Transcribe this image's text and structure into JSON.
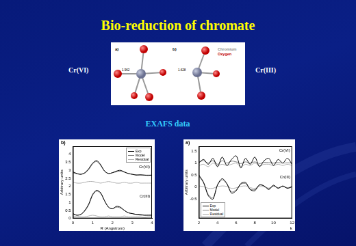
{
  "slide": {
    "title": "Bio-reduction of chromate",
    "left_label": "Cr(VI)",
    "right_label": "Cr(III)",
    "section": "EXAFS data"
  },
  "structure_figure": {
    "panels": [
      {
        "label": "a)",
        "bond_length": 1.962
      },
      {
        "label": "b)",
        "bond_length": 1.628
      }
    ],
    "key_labels": [
      "Chromium",
      "Oxygen"
    ]
  },
  "chart_data": [
    {
      "type": "line",
      "panel_label": "b)",
      "x_label": "R (Angstrom)",
      "y_label": "Arbitrary units",
      "x": [
        0,
        0.2,
        0.4,
        0.6,
        0.8,
        1.0,
        1.2,
        1.4,
        1.6,
        1.8,
        2.0,
        2.2,
        2.4,
        2.6,
        2.8,
        3.0,
        3.2,
        3.4,
        3.6,
        3.8,
        4.0
      ],
      "xlim": [
        0,
        4
      ],
      "xticks": [
        0,
        1,
        2,
        3,
        4
      ],
      "ylim": [
        0,
        4.5
      ],
      "yticks": [
        0,
        0.5,
        1,
        1.5,
        2,
        2.5,
        3,
        3.5,
        4
      ],
      "grid": false,
      "legend": "upper right",
      "annotations": [
        "Cr(VI)",
        "Cr(III)"
      ],
      "series": [
        {
          "name": "Exp",
          "color": "#000000",
          "values": [
            2.9,
            2.8,
            2.75,
            2.85,
            3.1,
            3.45,
            3.6,
            3.35,
            2.95,
            2.8,
            2.85,
            2.95,
            3.0,
            2.9,
            2.8,
            2.75,
            2.7,
            2.72,
            2.7,
            2.68,
            2.7
          ]
        },
        {
          "name": "Model",
          "color": "#808080",
          "values": [
            2.85,
            2.78,
            2.75,
            2.82,
            3.05,
            3.4,
            3.55,
            3.3,
            2.95,
            2.8,
            2.85,
            2.9,
            2.95,
            2.88,
            2.8,
            2.75,
            2.72,
            2.7,
            2.7,
            2.7,
            2.7
          ]
        },
        {
          "name": "Residual",
          "color": "#b0b0b0",
          "values": [
            2.25,
            2.2,
            2.2,
            2.25,
            2.3,
            2.3,
            2.25,
            2.2,
            2.25,
            2.3,
            2.25,
            2.2,
            2.2,
            2.25,
            2.2,
            2.2,
            2.25,
            2.2,
            2.2,
            2.2,
            2.2
          ]
        },
        {
          "name": "Exp",
          "color": "#000000",
          "values": [
            0.3,
            0.2,
            0.25,
            0.5,
            0.9,
            1.5,
            1.75,
            1.6,
            1.1,
            0.7,
            0.6,
            0.75,
            0.7,
            0.5,
            0.35,
            0.3,
            0.25,
            0.25,
            0.2,
            0.2,
            0.2
          ]
        },
        {
          "name": "Model",
          "color": "#808080",
          "values": [
            0.25,
            0.2,
            0.25,
            0.45,
            0.85,
            1.45,
            1.7,
            1.55,
            1.1,
            0.7,
            0.6,
            0.7,
            0.65,
            0.5,
            0.35,
            0.3,
            0.25,
            0.2,
            0.2,
            0.2,
            0.2
          ]
        },
        {
          "name": "Residual",
          "color": "#b0b0b0",
          "values": [
            0.1,
            0.15,
            0.1,
            0.1,
            0.15,
            0.2,
            0.15,
            0.1,
            0.1,
            0.15,
            0.1,
            0.1,
            0.1,
            0.15,
            0.1,
            0.1,
            0.1,
            0.1,
            0.05,
            0.1,
            0.1
          ]
        }
      ]
    },
    {
      "type": "line",
      "panel_label": "a)",
      "x_label": "k",
      "y_label": "Arbitrary units",
      "x": [
        2,
        2.5,
        3,
        3.5,
        4,
        4.5,
        5,
        5.5,
        6,
        6.5,
        7,
        7.5,
        8,
        8.5,
        9,
        9.5,
        10,
        10.5,
        11,
        11.5,
        12
      ],
      "xlim": [
        2,
        12
      ],
      "xticks": [
        2,
        4,
        6,
        8,
        10,
        12
      ],
      "ylim": [
        -1.3,
        1.7
      ],
      "yticks": [
        -0.5,
        0,
        0.5,
        1,
        1.5
      ],
      "grid": false,
      "legend": "lower left",
      "annotations": [
        "Cr(VI)",
        "Cr(III)"
      ],
      "series": [
        {
          "name": "Exp",
          "color": "#000000",
          "values": [
            1.0,
            1.15,
            0.95,
            1.2,
            0.85,
            1.25,
            0.9,
            1.15,
            1.3,
            0.8,
            1.2,
            0.95,
            1.25,
            0.85,
            1.1,
            1.2,
            0.9,
            1.15,
            1.0,
            1.2,
            0.95
          ]
        },
        {
          "name": "Model",
          "color": "#808080",
          "values": [
            1.05,
            1.1,
            1.0,
            1.1,
            0.95,
            1.1,
            1.0,
            1.08,
            1.05,
            0.98,
            1.05,
            1.0,
            1.05,
            0.98,
            1.03,
            1.02,
            1.0,
            1.02,
            1.0,
            1.01,
            1.0
          ]
        },
        {
          "name": "Residual",
          "color": "#b0b0b0",
          "values": [
            0.9,
            0.95,
            0.85,
            1.0,
            0.9,
            0.95,
            0.9,
            0.95,
            1.0,
            0.85,
            0.95,
            0.9,
            1.0,
            0.9,
            0.95,
            0.95,
            0.9,
            0.95,
            0.9,
            0.95,
            0.9
          ]
        },
        {
          "name": "Exp",
          "color": "#000000",
          "values": [
            0.5,
            0.2,
            -0.35,
            -0.5,
            0.1,
            0.35,
            0.15,
            -0.25,
            -0.15,
            0.15,
            0.2,
            -0.1,
            -0.15,
            0.1,
            0.05,
            -0.1,
            0.08,
            -0.05,
            0.05,
            -0.05,
            0.02
          ]
        },
        {
          "name": "Model",
          "color": "#808080",
          "values": [
            0.45,
            0.18,
            -0.3,
            -0.45,
            0.08,
            0.3,
            0.12,
            -0.2,
            -0.12,
            0.12,
            0.15,
            -0.08,
            -0.1,
            0.08,
            0.04,
            -0.06,
            0.05,
            -0.03,
            0.03,
            -0.03,
            0.01
          ]
        },
        {
          "name": "Residual",
          "color": "#b0b0b0",
          "values": [
            0.05,
            0.02,
            -0.05,
            -0.05,
            0.02,
            0.05,
            0.03,
            -0.05,
            -0.03,
            0.03,
            0.05,
            -0.02,
            -0.05,
            0.02,
            0.01,
            -0.04,
            0.03,
            -0.02,
            0.02,
            -0.02,
            0.01
          ]
        }
      ]
    }
  ]
}
